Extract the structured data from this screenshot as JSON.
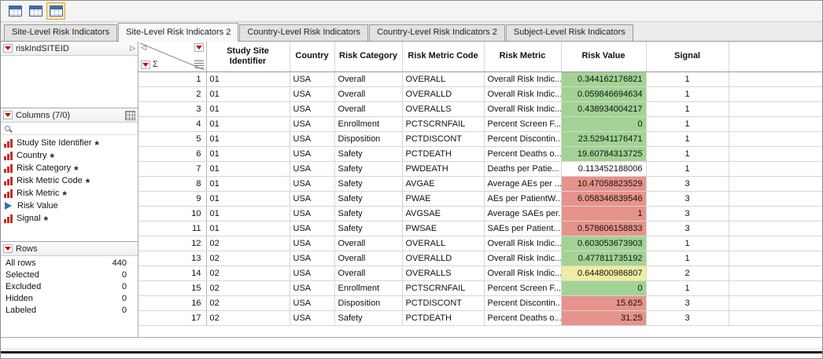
{
  "toolbar": {
    "icons": [
      {
        "name": "data-table-view-icon"
      },
      {
        "name": "split-table-view-icon"
      },
      {
        "name": "active-table-view-icon",
        "selected": true
      }
    ]
  },
  "tabs": [
    {
      "label": "Site-Level Risk Indicators",
      "active": false
    },
    {
      "label": "Site-Level Risk Indicators 2",
      "active": true
    },
    {
      "label": "Country-Level Risk Indicators",
      "active": false
    },
    {
      "label": "Country-Level Risk Indicators 2",
      "active": false
    },
    {
      "label": "Subject-Level Risk Indicators",
      "active": false
    }
  ],
  "sidebar": {
    "table_title": "riskIndSITEID",
    "columns_title": "Columns (7/0)",
    "columns": [
      {
        "label": "Study Site Identifier",
        "type": "nominal",
        "starred": true
      },
      {
        "label": "Country",
        "type": "nominal",
        "starred": true
      },
      {
        "label": "Risk Category",
        "type": "nominal",
        "starred": true
      },
      {
        "label": "Risk Metric Code",
        "type": "nominal",
        "starred": true
      },
      {
        "label": "Risk Metric",
        "type": "nominal",
        "starred": true
      },
      {
        "label": "Risk Value",
        "type": "continuous",
        "starred": false
      },
      {
        "label": "Signal",
        "type": "nominal",
        "starred": true
      }
    ],
    "rows_title": "Rows",
    "row_stats": [
      {
        "label": "All rows",
        "value": "440"
      },
      {
        "label": "Selected",
        "value": "0"
      },
      {
        "label": "Excluded",
        "value": "0"
      },
      {
        "label": "Hidden",
        "value": "0"
      },
      {
        "label": "Labeled",
        "value": "0"
      }
    ]
  },
  "grid": {
    "sigma_label": "Σ",
    "headers": [
      "Study Site Identifier",
      "Country",
      "Risk Category",
      "Risk Metric Code",
      "Risk Metric",
      "Risk Value",
      "Signal"
    ],
    "colors": {
      "green": "#a2d394",
      "red": "#e6938b",
      "yellow": "#efeda2",
      "none": "#ffffff"
    },
    "rows": [
      [
        "1",
        "01",
        "USA",
        "Overall",
        "OVERALL",
        "Overall Risk Indic...",
        "0.344162176821",
        "green",
        "1"
      ],
      [
        "2",
        "01",
        "USA",
        "Overall",
        "OVERALLD",
        "Overall Risk Indic...",
        "0.059846694634",
        "green",
        "1"
      ],
      [
        "3",
        "01",
        "USA",
        "Overall",
        "OVERALLS",
        "Overall Risk Indic...",
        "0.438934004217",
        "green",
        "1"
      ],
      [
        "4",
        "01",
        "USA",
        "Enrollment",
        "PCTSCRNFAIL",
        "Percent Screen F...",
        "0",
        "green",
        "1"
      ],
      [
        "5",
        "01",
        "USA",
        "Disposition",
        "PCTDISCONT",
        "Percent Discontin...",
        "23.52941176471",
        "green",
        "1"
      ],
      [
        "6",
        "01",
        "USA",
        "Safety",
        "PCTDEATH",
        "Percent Deaths o...",
        "19.60784313725",
        "green",
        "1"
      ],
      [
        "7",
        "01",
        "USA",
        "Safety",
        "PWDEATH",
        "Deaths per Patie...",
        "0.113452188006",
        "none",
        "1"
      ],
      [
        "8",
        "01",
        "USA",
        "Safety",
        "AVGAE",
        "Average AEs per ...",
        "10.47058823529",
        "red",
        "3"
      ],
      [
        "9",
        "01",
        "USA",
        "Safety",
        "PWAE",
        "AEs per PatientW...",
        "6.058346839546",
        "red",
        "3"
      ],
      [
        "10",
        "01",
        "USA",
        "Safety",
        "AVGSAE",
        "Average SAEs per...",
        "1",
        "red",
        "3"
      ],
      [
        "11",
        "01",
        "USA",
        "Safety",
        "PWSAE",
        "SAEs per Patient...",
        "0.578606158833",
        "red",
        "3"
      ],
      [
        "12",
        "02",
        "USA",
        "Overall",
        "OVERALL",
        "Overall Risk Indic...",
        "0.603053673903",
        "green",
        "1"
      ],
      [
        "13",
        "02",
        "USA",
        "Overall",
        "OVERALLD",
        "Overall Risk Indic...",
        "0.477811735192",
        "green",
        "1"
      ],
      [
        "14",
        "02",
        "USA",
        "Overall",
        "OVERALLS",
        "Overall Risk Indic...",
        "0.644800986807",
        "yellow",
        "2"
      ],
      [
        "15",
        "02",
        "USA",
        "Enrollment",
        "PCTSCRNFAIL",
        "Percent Screen F...",
        "0",
        "green",
        "1"
      ],
      [
        "16",
        "02",
        "USA",
        "Disposition",
        "PCTDISCONT",
        "Percent Discontin...",
        "15.625",
        "red",
        "3"
      ],
      [
        "17",
        "02",
        "USA",
        "Safety",
        "PCTDEATH",
        "Percent Deaths o...",
        "31.25",
        "red",
        "3"
      ]
    ]
  }
}
